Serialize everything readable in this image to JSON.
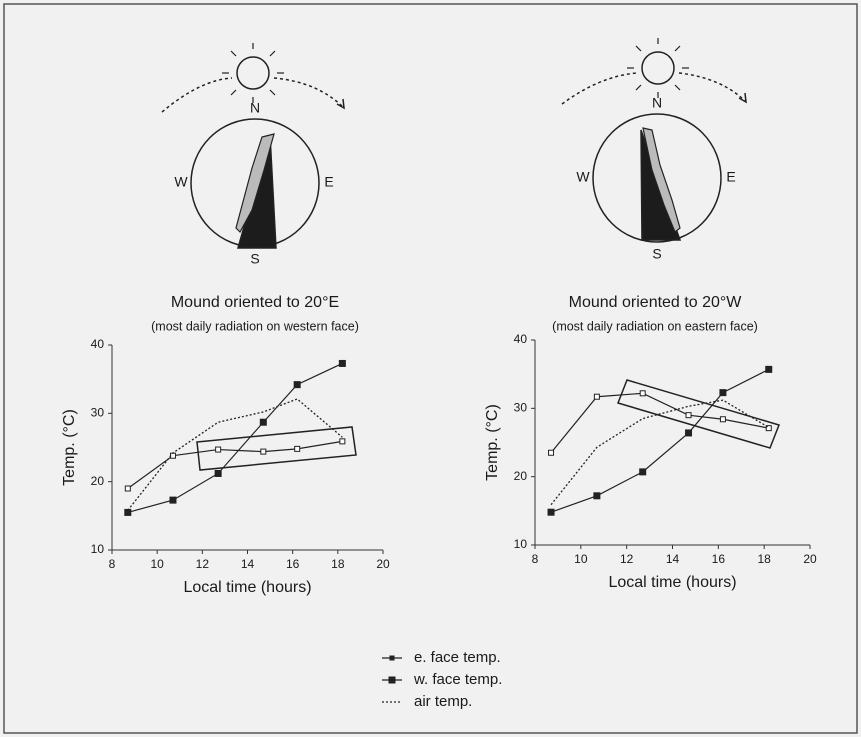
{
  "chart_data": [
    {
      "type": "line",
      "title": "Mound oriented to 20°E",
      "subtitle": "(most daily radiation on western face)",
      "annotations": [
        "N",
        "W",
        "E",
        "S"
      ],
      "xlabel": "Local time (hours)",
      "ylabel": "Temp. (°C)",
      "x": [
        8.7,
        10.7,
        12.7,
        14.7,
        16.2,
        18.2
      ],
      "series": [
        {
          "name": "e. face temp.",
          "color": "#222222",
          "marker": "open-square",
          "values": [
            19,
            23.8,
            24.7,
            24.4,
            24.8,
            25.9
          ]
        },
        {
          "name": "w. face temp.",
          "color": "#222222",
          "marker": "filled-square",
          "values": [
            15.5,
            17.3,
            21.2,
            28.7,
            34.2,
            37.3
          ]
        },
        {
          "name": "air temp.",
          "color": "#222222",
          "dashed": true,
          "values": [
            15.8,
            24.2,
            28.7,
            30.2,
            32.1,
            26.5
          ]
        }
      ],
      "xlim": [
        8,
        20
      ],
      "xticks": [
        8,
        10,
        12,
        14,
        16,
        18,
        20
      ],
      "ylim": [
        10,
        40
      ],
      "yticks": [
        10,
        20,
        30,
        40
      ]
    },
    {
      "type": "line",
      "title": "Mound oriented to 20°W",
      "subtitle": "(most daily radiation on eastern face)",
      "annotations": [
        "N",
        "W",
        "E",
        "S"
      ],
      "xlabel": "Local time (hours)",
      "ylabel": "Temp. (°C)",
      "x": [
        8.7,
        10.7,
        12.7,
        14.7,
        16.2,
        18.2
      ],
      "series": [
        {
          "color": "#222222",
          "marker": "open-square",
          "values": [
            23.5,
            31.7,
            32.2,
            29,
            28.4,
            27.1
          ]
        },
        {
          "color": "#222222",
          "marker": "filled-square",
          "values": [
            14.8,
            17.2,
            20.7,
            26.4,
            32.3,
            35.7
          ]
        },
        {
          "color": "#222222",
          "dashed": true,
          "values": [
            15.9,
            24.3,
            28.5,
            30.3,
            31.2,
            27.2
          ]
        }
      ],
      "xlim": [
        8,
        20
      ],
      "xticks": [
        8,
        10,
        12,
        14,
        16,
        18,
        20
      ],
      "ylim": [
        10,
        40
      ],
      "yticks": [
        10,
        20,
        30,
        40
      ]
    }
  ]
}
